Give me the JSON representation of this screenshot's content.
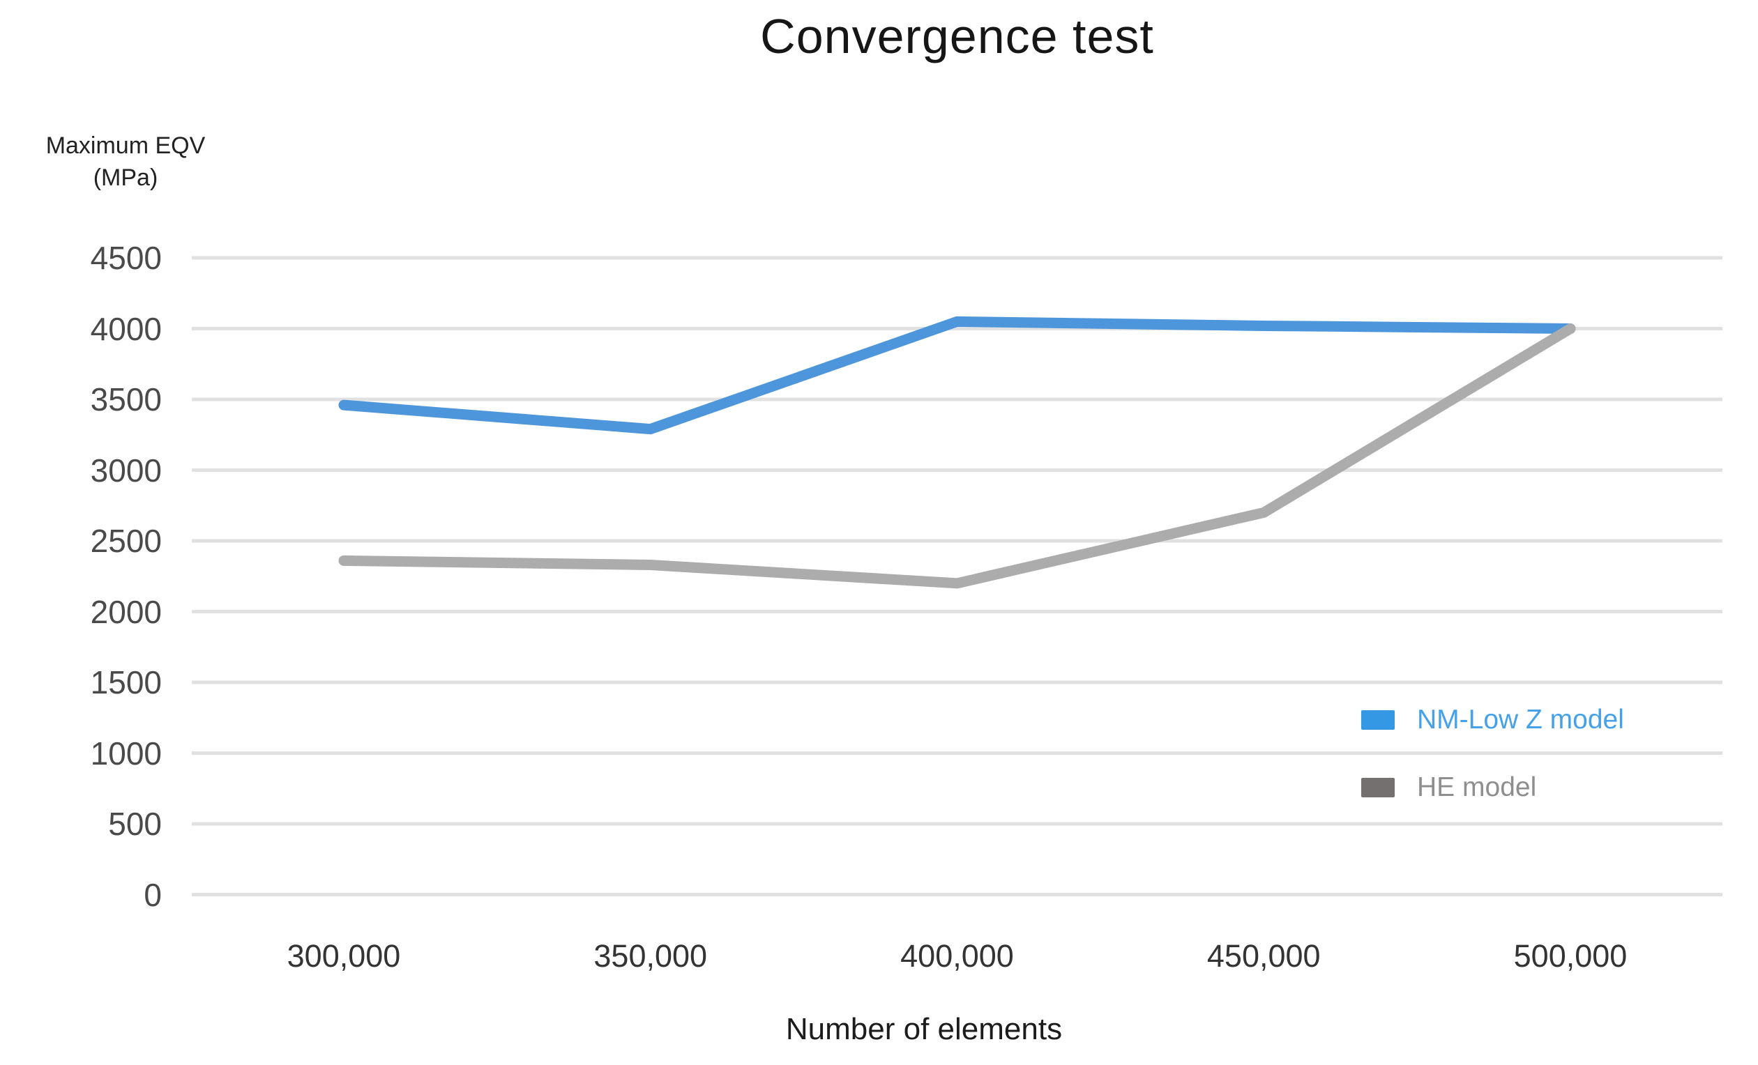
{
  "chart_data": {
    "type": "line",
    "title": "Convergence test",
    "xlabel": "Number of elements",
    "ylabel_lines": "Maximum EQV\n(MPa)",
    "categories": [
      "300,000",
      "350,000",
      "400,000",
      "450,000",
      "500,000"
    ],
    "yticks": [
      4500,
      4000,
      3500,
      3000,
      2500,
      2000,
      1500,
      1000,
      500,
      0
    ],
    "ylim": [
      0,
      4500
    ],
    "grid": "horizontal-only",
    "grid_color": "#E1E1E1",
    "legend_position": "lower-right",
    "series": [
      {
        "name": "NM-Low Z model",
        "values": [
          3460,
          3290,
          4050,
          4020,
          4000
        ],
        "line_color": "#4D96DB",
        "swatch_color": "#3498E5",
        "text_color": "#45A1E9"
      },
      {
        "name": "HE model",
        "values": [
          2360,
          2330,
          2200,
          2700,
          4000
        ],
        "line_color": "#ACACAC",
        "swatch_color": "#757070",
        "text_color": "#8E8E8E"
      }
    ]
  }
}
